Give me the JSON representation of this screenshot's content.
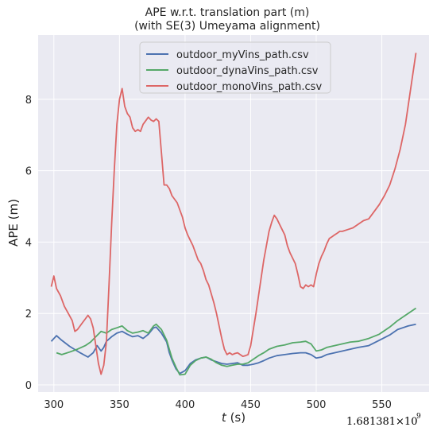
{
  "chart_data": {
    "type": "line",
    "title_line1": "APE w.r.t. translation part (m)",
    "title_line2": "(with SE(3) Umeyama alignment)",
    "xlabel_italic": "t",
    "xlabel_unit": " (s)",
    "ylabel": "APE (m)",
    "x_offset_base": "1.681381×10",
    "x_offset_exp": "9",
    "xlim": [
      288,
      586
    ],
    "ylim": [
      -0.2,
      9.8
    ],
    "xticks": [
      300,
      350,
      400,
      450,
      500,
      550
    ],
    "yticks": [
      0,
      2,
      4,
      6,
      8
    ],
    "grid": true,
    "legend_position": "top-center",
    "background": "#eaeaf2",
    "series": [
      {
        "name": "outdoor_myVins_path.csv",
        "color": "#4c72b0",
        "points": [
          [
            298,
            1.22
          ],
          [
            302,
            1.38
          ],
          [
            306,
            1.25
          ],
          [
            312,
            1.08
          ],
          [
            320,
            0.9
          ],
          [
            326,
            0.78
          ],
          [
            330,
            0.9
          ],
          [
            333,
            1.1
          ],
          [
            336,
            0.95
          ],
          [
            338,
            1.05
          ],
          [
            340,
            1.22
          ],
          [
            344,
            1.35
          ],
          [
            348,
            1.45
          ],
          [
            352,
            1.5
          ],
          [
            356,
            1.42
          ],
          [
            360,
            1.35
          ],
          [
            364,
            1.38
          ],
          [
            368,
            1.3
          ],
          [
            372,
            1.42
          ],
          [
            376,
            1.6
          ],
          [
            378,
            1.62
          ],
          [
            382,
            1.45
          ],
          [
            386,
            1.2
          ],
          [
            388,
            0.9
          ],
          [
            390,
            0.7
          ],
          [
            393,
            0.45
          ],
          [
            396,
            0.32
          ],
          [
            400,
            0.4
          ],
          [
            404,
            0.6
          ],
          [
            408,
            0.7
          ],
          [
            412,
            0.75
          ],
          [
            416,
            0.78
          ],
          [
            420,
            0.7
          ],
          [
            424,
            0.65
          ],
          [
            428,
            0.6
          ],
          [
            432,
            0.58
          ],
          [
            436,
            0.6
          ],
          [
            440,
            0.62
          ],
          [
            444,
            0.55
          ],
          [
            448,
            0.55
          ],
          [
            452,
            0.58
          ],
          [
            456,
            0.62
          ],
          [
            460,
            0.68
          ],
          [
            464,
            0.75
          ],
          [
            470,
            0.82
          ],
          [
            476,
            0.85
          ],
          [
            482,
            0.88
          ],
          [
            488,
            0.9
          ],
          [
            492,
            0.9
          ],
          [
            496,
            0.85
          ],
          [
            500,
            0.75
          ],
          [
            504,
            0.78
          ],
          [
            508,
            0.85
          ],
          [
            514,
            0.9
          ],
          [
            520,
            0.95
          ],
          [
            526,
            1.0
          ],
          [
            532,
            1.05
          ],
          [
            540,
            1.1
          ],
          [
            548,
            1.25
          ],
          [
            556,
            1.4
          ],
          [
            562,
            1.55
          ],
          [
            570,
            1.65
          ],
          [
            576,
            1.7
          ]
        ]
      },
      {
        "name": "outdoor_dynaVins_path.csv",
        "color": "#55a868",
        "points": [
          [
            302,
            0.9
          ],
          [
            306,
            0.85
          ],
          [
            312,
            0.92
          ],
          [
            318,
            1.0
          ],
          [
            324,
            1.1
          ],
          [
            328,
            1.2
          ],
          [
            332,
            1.35
          ],
          [
            336,
            1.5
          ],
          [
            340,
            1.45
          ],
          [
            344,
            1.55
          ],
          [
            348,
            1.6
          ],
          [
            352,
            1.65
          ],
          [
            356,
            1.52
          ],
          [
            360,
            1.45
          ],
          [
            364,
            1.48
          ],
          [
            368,
            1.52
          ],
          [
            372,
            1.45
          ],
          [
            376,
            1.65
          ],
          [
            378,
            1.7
          ],
          [
            382,
            1.55
          ],
          [
            386,
            1.25
          ],
          [
            388,
            1.0
          ],
          [
            390,
            0.75
          ],
          [
            393,
            0.5
          ],
          [
            396,
            0.28
          ],
          [
            400,
            0.3
          ],
          [
            404,
            0.55
          ],
          [
            408,
            0.68
          ],
          [
            412,
            0.75
          ],
          [
            416,
            0.78
          ],
          [
            420,
            0.72
          ],
          [
            424,
            0.62
          ],
          [
            428,
            0.55
          ],
          [
            432,
            0.52
          ],
          [
            436,
            0.55
          ],
          [
            440,
            0.58
          ],
          [
            444,
            0.58
          ],
          [
            448,
            0.62
          ],
          [
            452,
            0.72
          ],
          [
            456,
            0.82
          ],
          [
            460,
            0.9
          ],
          [
            464,
            1.0
          ],
          [
            470,
            1.08
          ],
          [
            476,
            1.12
          ],
          [
            482,
            1.18
          ],
          [
            488,
            1.2
          ],
          [
            492,
            1.22
          ],
          [
            496,
            1.15
          ],
          [
            500,
            0.95
          ],
          [
            504,
            0.98
          ],
          [
            508,
            1.05
          ],
          [
            514,
            1.1
          ],
          [
            520,
            1.15
          ],
          [
            526,
            1.2
          ],
          [
            532,
            1.22
          ],
          [
            540,
            1.3
          ],
          [
            548,
            1.42
          ],
          [
            556,
            1.62
          ],
          [
            562,
            1.8
          ],
          [
            570,
            2.0
          ],
          [
            576,
            2.15
          ]
        ]
      },
      {
        "name": "outdoor_monoVins_path.csv",
        "color": "#dd6666",
        "points": [
          [
            298,
            2.75
          ],
          [
            300,
            3.05
          ],
          [
            302,
            2.7
          ],
          [
            305,
            2.5
          ],
          [
            308,
            2.2
          ],
          [
            311,
            2.0
          ],
          [
            314,
            1.8
          ],
          [
            316,
            1.5
          ],
          [
            318,
            1.55
          ],
          [
            320,
            1.65
          ],
          [
            322,
            1.75
          ],
          [
            324,
            1.85
          ],
          [
            326,
            1.95
          ],
          [
            328,
            1.85
          ],
          [
            330,
            1.6
          ],
          [
            332,
            1.1
          ],
          [
            334,
            0.6
          ],
          [
            336,
            0.3
          ],
          [
            338,
            0.55
          ],
          [
            340,
            1.2
          ],
          [
            342,
            2.8
          ],
          [
            344,
            4.5
          ],
          [
            346,
            6.0
          ],
          [
            348,
            7.3
          ],
          [
            350,
            8.0
          ],
          [
            352,
            8.3
          ],
          [
            354,
            7.8
          ],
          [
            356,
            7.6
          ],
          [
            358,
            7.5
          ],
          [
            360,
            7.2
          ],
          [
            362,
            7.1
          ],
          [
            364,
            7.15
          ],
          [
            366,
            7.1
          ],
          [
            368,
            7.3
          ],
          [
            370,
            7.4
          ],
          [
            372,
            7.5
          ],
          [
            374,
            7.42
          ],
          [
            376,
            7.38
          ],
          [
            378,
            7.45
          ],
          [
            380,
            7.38
          ],
          [
            382,
            6.5
          ],
          [
            384,
            5.6
          ],
          [
            386,
            5.6
          ],
          [
            388,
            5.5
          ],
          [
            390,
            5.3
          ],
          [
            392,
            5.2
          ],
          [
            394,
            5.1
          ],
          [
            396,
            4.9
          ],
          [
            398,
            4.7
          ],
          [
            400,
            4.4
          ],
          [
            402,
            4.2
          ],
          [
            404,
            4.05
          ],
          [
            406,
            3.9
          ],
          [
            408,
            3.7
          ],
          [
            410,
            3.5
          ],
          [
            412,
            3.4
          ],
          [
            414,
            3.2
          ],
          [
            416,
            2.95
          ],
          [
            418,
            2.8
          ],
          [
            420,
            2.55
          ],
          [
            422,
            2.3
          ],
          [
            424,
            2.0
          ],
          [
            426,
            1.65
          ],
          [
            428,
            1.3
          ],
          [
            430,
            1.0
          ],
          [
            432,
            0.85
          ],
          [
            434,
            0.9
          ],
          [
            436,
            0.85
          ],
          [
            438,
            0.88
          ],
          [
            440,
            0.9
          ],
          [
            442,
            0.85
          ],
          [
            444,
            0.8
          ],
          [
            446,
            0.82
          ],
          [
            448,
            0.85
          ],
          [
            450,
            1.1
          ],
          [
            452,
            1.55
          ],
          [
            454,
            2.0
          ],
          [
            456,
            2.5
          ],
          [
            458,
            3.0
          ],
          [
            460,
            3.5
          ],
          [
            462,
            3.9
          ],
          [
            464,
            4.3
          ],
          [
            466,
            4.55
          ],
          [
            468,
            4.75
          ],
          [
            470,
            4.65
          ],
          [
            472,
            4.5
          ],
          [
            474,
            4.35
          ],
          [
            476,
            4.2
          ],
          [
            478,
            3.9
          ],
          [
            480,
            3.7
          ],
          [
            482,
            3.55
          ],
          [
            484,
            3.4
          ],
          [
            486,
            3.1
          ],
          [
            488,
            2.75
          ],
          [
            490,
            2.7
          ],
          [
            492,
            2.8
          ],
          [
            494,
            2.75
          ],
          [
            496,
            2.8
          ],
          [
            498,
            2.75
          ],
          [
            500,
            3.1
          ],
          [
            502,
            3.4
          ],
          [
            504,
            3.6
          ],
          [
            506,
            3.75
          ],
          [
            508,
            3.95
          ],
          [
            510,
            4.1
          ],
          [
            512,
            4.15
          ],
          [
            514,
            4.2
          ],
          [
            516,
            4.25
          ],
          [
            518,
            4.3
          ],
          [
            520,
            4.3
          ],
          [
            524,
            4.35
          ],
          [
            528,
            4.4
          ],
          [
            532,
            4.5
          ],
          [
            536,
            4.6
          ],
          [
            540,
            4.65
          ],
          [
            544,
            4.85
          ],
          [
            548,
            5.05
          ],
          [
            552,
            5.3
          ],
          [
            556,
            5.6
          ],
          [
            560,
            6.05
          ],
          [
            564,
            6.6
          ],
          [
            568,
            7.3
          ],
          [
            572,
            8.3
          ],
          [
            576,
            9.3
          ]
        ]
      }
    ]
  }
}
